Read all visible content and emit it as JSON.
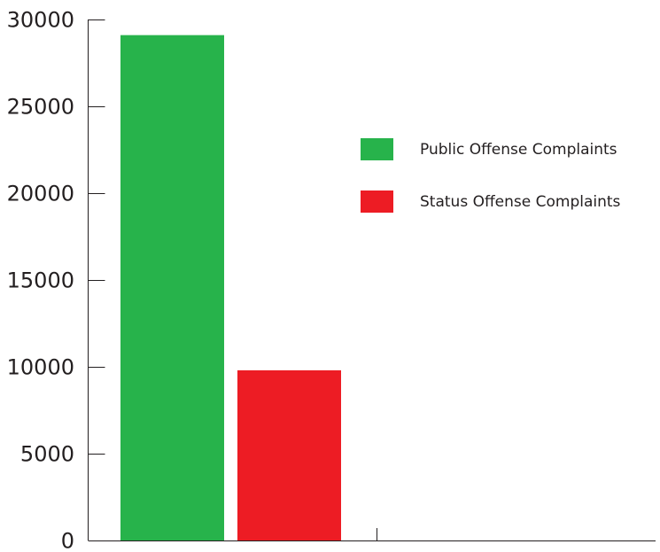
{
  "chart_data": {
    "type": "bar",
    "title": "",
    "xlabel": "",
    "ylabel": "",
    "categories": [
      ""
    ],
    "series": [
      {
        "name": "Public Offense Complaints",
        "values": [
          29100
        ],
        "color": "#27b34b"
      },
      {
        "name": "Status Offense Complaints",
        "values": [
          9800
        ],
        "color": "#ed1c24"
      }
    ],
    "ylim": [
      0,
      30000
    ],
    "yticks": [
      0,
      5000,
      10000,
      15000,
      20000,
      25000,
      30000
    ],
    "grid": false,
    "legend_position": "top-right"
  }
}
